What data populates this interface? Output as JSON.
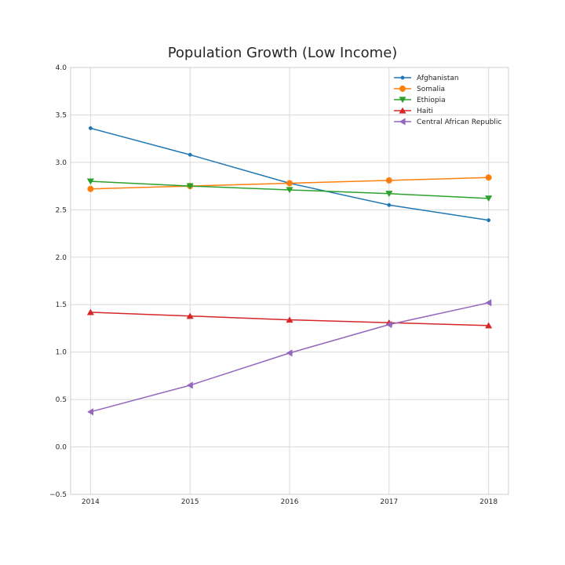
{
  "chart_data": {
    "type": "line",
    "title": "Population Growth (Low Income)",
    "xlabel": "",
    "ylabel": "",
    "x": [
      2014,
      2015,
      2016,
      2017,
      2018
    ],
    "xticks": [
      "2014",
      "2015",
      "2016",
      "2017",
      "2018"
    ],
    "ylim": [
      -0.5,
      4.0
    ],
    "yticks": [
      "−0.5",
      "0.0",
      "0.5",
      "1.0",
      "1.5",
      "2.0",
      "2.5",
      "3.0",
      "3.5",
      "4.0"
    ],
    "grid": true,
    "legend_position": "top-right",
    "series": [
      {
        "name": "Afghanistan",
        "color": "#1f77b4",
        "marker": "point",
        "values": [
          3.36,
          3.08,
          2.78,
          2.55,
          2.39
        ]
      },
      {
        "name": "Somalia",
        "color": "#ff7f0e",
        "marker": "circle",
        "values": [
          2.72,
          2.75,
          2.78,
          2.81,
          2.84
        ]
      },
      {
        "name": "Ethiopia",
        "color": "#2ca02c",
        "marker": "triangle-down",
        "values": [
          2.8,
          2.75,
          2.71,
          2.67,
          2.62
        ]
      },
      {
        "name": "Haiti",
        "color": "#d62728",
        "marker": "triangle-up",
        "values": [
          1.42,
          1.38,
          1.34,
          1.31,
          1.28
        ]
      },
      {
        "name": "Central African Republic",
        "color": "#9467bd",
        "marker": "triangle-left",
        "values": [
          0.37,
          0.65,
          0.99,
          1.29,
          1.52
        ]
      }
    ]
  }
}
